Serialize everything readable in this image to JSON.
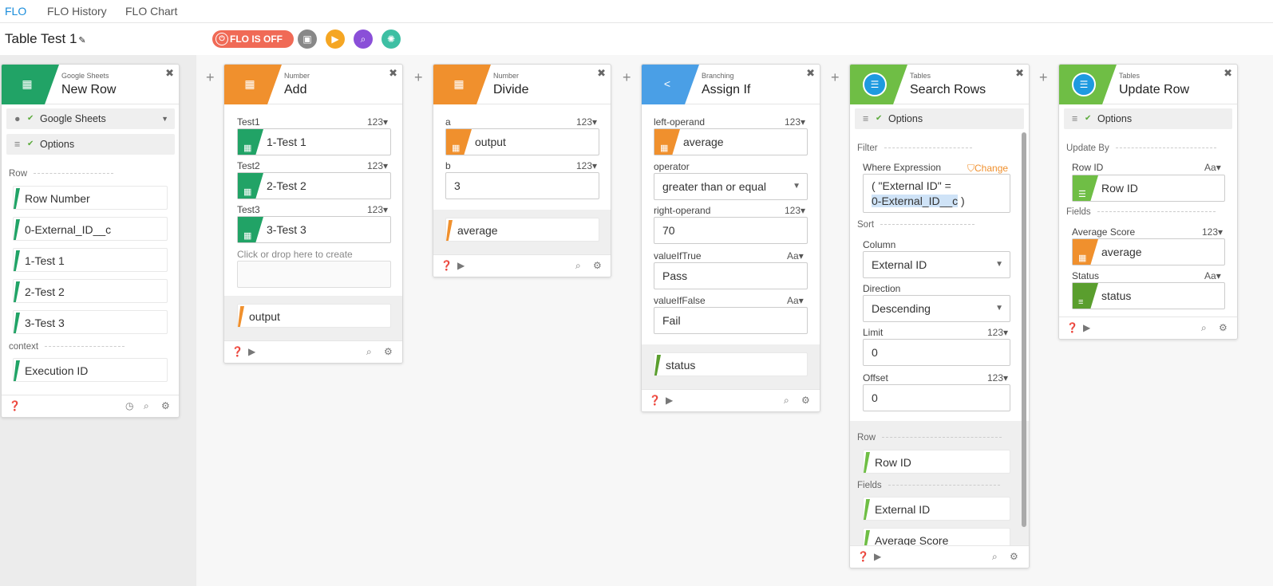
{
  "nav": {
    "tabs": [
      "FLO",
      "FLO History",
      "FLO Chart"
    ]
  },
  "flo": {
    "title": "Table Test 1",
    "status_label": "FLO IS OFF"
  },
  "colors": {
    "accent": "#1a8ddb",
    "off": "#f06a56",
    "sheets": "#21a366",
    "number": "#f0902d",
    "branching": "#4a9fe6",
    "tables": "#6fbe45"
  },
  "cards": {
    "new_row": {
      "category": "Google Sheets",
      "name": "New Row",
      "connection": "Google Sheets",
      "options": "Options",
      "section_row": "Row",
      "items": [
        "Row Number",
        "0-External_ID__c",
        "1-Test 1",
        "2-Test 2",
        "3-Test 3"
      ],
      "section_context": "context",
      "context_items": [
        "Execution ID"
      ]
    },
    "add": {
      "category": "Number",
      "name": "Add",
      "fields": [
        {
          "label": "Test1",
          "type": "123",
          "value": "1-Test 1"
        },
        {
          "label": "Test2",
          "type": "123",
          "value": "2-Test 2"
        },
        {
          "label": "Test3",
          "type": "123",
          "value": "3-Test 3"
        }
      ],
      "create_hint": "Click or drop here to create",
      "output": "output"
    },
    "divide": {
      "category": "Number",
      "name": "Divide",
      "a_label": "a",
      "a_type": "123",
      "a_value": "output",
      "b_label": "b",
      "b_type": "123",
      "b_value": "3",
      "output": "average"
    },
    "assign_if": {
      "category": "Branching",
      "name": "Assign If",
      "left_label": "left-operand",
      "left_type": "123",
      "left_value": "average",
      "operator_label": "operator",
      "operator_value": "greater than or equal",
      "right_label": "right-operand",
      "right_type": "123",
      "right_value": "70",
      "true_label": "valueIfTrue",
      "true_type": "Aa",
      "true_value": "Pass",
      "false_label": "valueIfFalse",
      "false_type": "Aa",
      "false_value": "Fail",
      "output": "status"
    },
    "search_rows": {
      "category": "Tables",
      "name": "Search Rows",
      "options": "Options",
      "filter": "Filter",
      "where_label": "Where Expression",
      "change": "Change",
      "where_line1": "( \"External ID\" =",
      "where_token": "0-External_ID__c",
      "where_end": " )",
      "sort": "Sort",
      "column_label": "Column",
      "column_value": "External ID",
      "direction_label": "Direction",
      "direction_value": "Descending",
      "limit_label": "Limit",
      "limit_type": "123",
      "limit_value": "0",
      "offset_label": "Offset",
      "offset_type": "123",
      "offset_value": "0",
      "row_section": "Row",
      "row_item": "Row ID",
      "fields_section": "Fields",
      "field_items": [
        "External ID",
        "Average Score"
      ]
    },
    "update_row": {
      "category": "Tables",
      "name": "Update Row",
      "options": "Options",
      "update_by": "Update By",
      "rowid_label": "Row ID",
      "rowid_type": "Aa",
      "rowid_value": "Row ID",
      "fields": "Fields",
      "avg_label": "Average Score",
      "avg_type": "123",
      "avg_value": "average",
      "status_label": "Status",
      "status_type": "Aa",
      "status_value": "status"
    }
  }
}
